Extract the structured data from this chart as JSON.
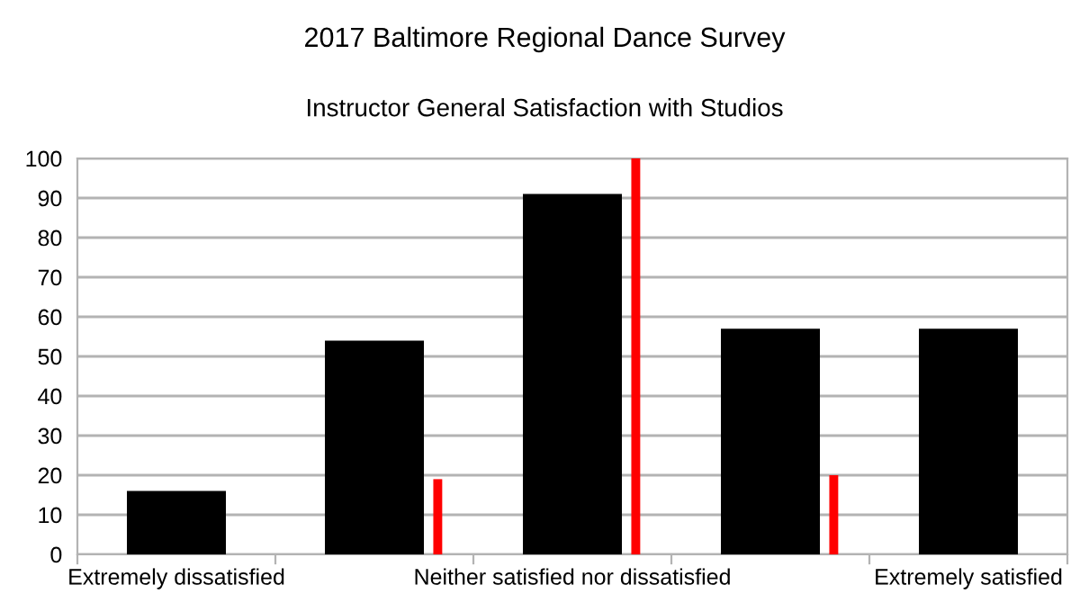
{
  "chart_data": {
    "type": "bar",
    "title": "2017 Baltimore Regional Dance Survey",
    "subtitle": "Instructor General Satisfaction with Studios",
    "categories": [
      "Extremely dissatisfied",
      null,
      "Neither satisfied nor dissatisfied",
      null,
      "Extremely satisfied"
    ],
    "ylim": [
      0,
      100
    ],
    "yticks": [
      0,
      10,
      20,
      30,
      40,
      50,
      60,
      70,
      80,
      90,
      100
    ],
    "grid": "y",
    "series": [
      {
        "color": "#000000",
        "values": [
          16,
          54,
          91,
          57,
          57
        ]
      },
      {
        "color": "#ff0000",
        "values": [
          null,
          19,
          100,
          20,
          null
        ]
      }
    ]
  }
}
